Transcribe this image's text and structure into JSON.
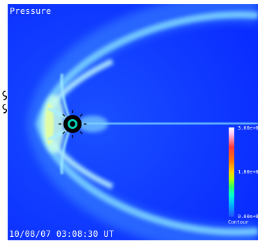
{
  "plot": {
    "title": "Pressure",
    "timestamp": "10/08/07 03:08:30 UT",
    "background_color": "#0a2dff"
  },
  "colorbar": {
    "max_label": "3.60e+0",
    "mid_label": "1.80e+0",
    "min_label": "0.00e+0",
    "caption": "Contour",
    "range": [
      0.0,
      3.6
    ]
  }
}
